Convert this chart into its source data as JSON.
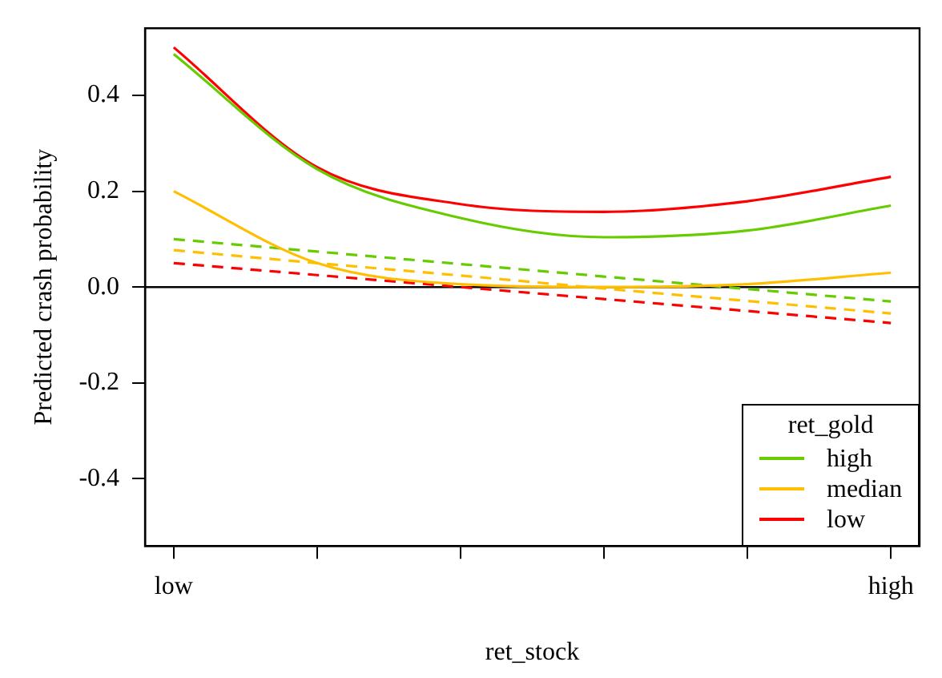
{
  "chart_data": {
    "type": "line",
    "xlabel": "ret_stock",
    "ylabel": "Predicted crash probability",
    "legend_title": "ret_gold",
    "legend": "bottom right",
    "grid": false,
    "marker": "none",
    "categories": [
      "low",
      null,
      null,
      null,
      null,
      "high"
    ],
    "ylim": [
      -0.54,
      0.54
    ],
    "yticks": [
      {
        "value": -0.4,
        "label": "-0.4"
      },
      {
        "value": -0.2,
        "label": "-0.2"
      },
      {
        "value": 0,
        "label": "0.0"
      },
      {
        "value": 0.2,
        "label": "0.2"
      },
      {
        "value": 0.4,
        "label": "0.4"
      }
    ],
    "ref_lines": [
      {
        "axis": "y",
        "value": 0,
        "color": "#000000",
        "line_style": "solid"
      }
    ],
    "series": [
      {
        "name": "high",
        "color": "#66cc00",
        "line_style": "solid",
        "values": [
          0.486,
          0.246,
          0.144,
          0.104,
          0.118,
          0.17
        ]
      },
      {
        "name": "median",
        "color": "#ffbf00",
        "line_style": "solid",
        "values": [
          0.2,
          0.05,
          0.006,
          0.0,
          0.006,
          0.03
        ]
      },
      {
        "name": "low",
        "color": "#ff0000",
        "line_style": "solid",
        "values": [
          0.5,
          0.25,
          0.173,
          0.157,
          0.179,
          0.23
        ]
      },
      {
        "color": "#66cc00",
        "line_style": "dashed",
        "values": [
          0.1,
          0.074,
          0.048,
          0.022,
          -0.004,
          -0.03
        ]
      },
      {
        "color": "#ffbf00",
        "line_style": "dashed",
        "values": [
          0.077,
          0.05,
          0.024,
          -0.003,
          -0.029,
          -0.055
        ]
      },
      {
        "color": "#ff0000",
        "line_style": "dashed",
        "values": [
          0.05,
          0.025,
          0.0,
          -0.025,
          -0.05,
          -0.075
        ]
      }
    ]
  }
}
